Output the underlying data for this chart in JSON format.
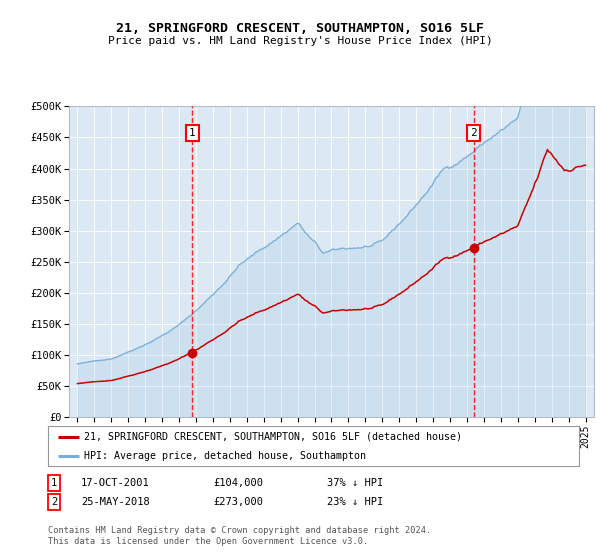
{
  "title": "21, SPRINGFORD CRESCENT, SOUTHAMPTON, SO16 5LF",
  "subtitle": "Price paid vs. HM Land Registry's House Price Index (HPI)",
  "background_color": "#dce9f5",
  "fig_bg_color": "#ffffff",
  "legend_label_red": "21, SPRINGFORD CRESCENT, SOUTHAMPTON, SO16 5LF (detached house)",
  "legend_label_blue": "HPI: Average price, detached house, Southampton",
  "red_color": "#cc0000",
  "blue_color": "#7aaed6",
  "marker1_date": 2001.79,
  "marker1_price": 104000,
  "marker2_date": 2018.39,
  "marker2_price": 273000,
  "footnote": "Contains HM Land Registry data © Crown copyright and database right 2024.\nThis data is licensed under the Open Government Licence v3.0.",
  "ylim": [
    0,
    500000
  ],
  "xlim": [
    1994.5,
    2025.5
  ],
  "yticks": [
    0,
    50000,
    100000,
    150000,
    200000,
    250000,
    300000,
    350000,
    400000,
    450000,
    500000
  ],
  "ytick_labels": [
    "£0",
    "£50K",
    "£100K",
    "£150K",
    "£200K",
    "£250K",
    "£300K",
    "£350K",
    "£400K",
    "£450K",
    "£500K"
  ],
  "xticks": [
    1995,
    1996,
    1997,
    1998,
    1999,
    2000,
    2001,
    2002,
    2003,
    2004,
    2005,
    2006,
    2007,
    2008,
    2009,
    2010,
    2011,
    2012,
    2013,
    2014,
    2015,
    2016,
    2017,
    2018,
    2019,
    2020,
    2021,
    2022,
    2023,
    2024,
    2025
  ]
}
